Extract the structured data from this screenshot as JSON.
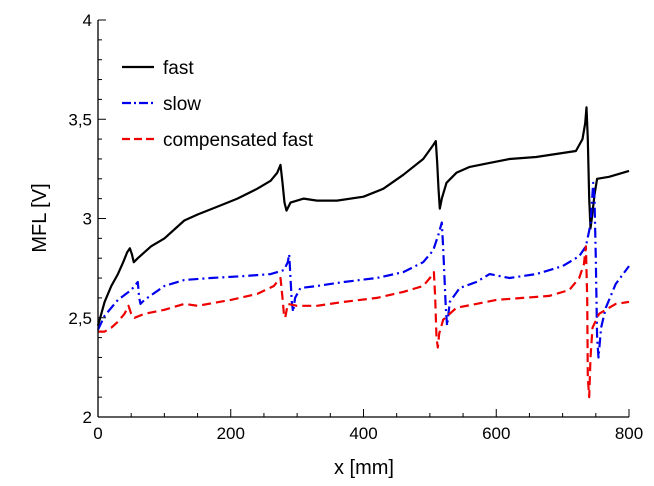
{
  "chart_data": {
    "type": "line",
    "title": "",
    "xlabel": "x [mm]",
    "ylabel": "MFL [V]",
    "xlim": [
      0,
      800
    ],
    "ylim": [
      2,
      4
    ],
    "x_ticks": [
      0,
      200,
      400,
      600,
      800
    ],
    "y_ticks": [
      2,
      2.5,
      3,
      3.5,
      4
    ],
    "y_tick_labels": [
      "2",
      "2,5",
      "3",
      "3,5",
      "4"
    ],
    "x_minor_step": 50,
    "y_minor_step": 0.1,
    "grid": false,
    "legend_position": "top-left",
    "series": [
      {
        "name": "fast",
        "color": "#000000",
        "dash": "solid",
        "points": [
          [
            0,
            2.46
          ],
          [
            10,
            2.58
          ],
          [
            20,
            2.66
          ],
          [
            30,
            2.72
          ],
          [
            38,
            2.78
          ],
          [
            44,
            2.83
          ],
          [
            48,
            2.85
          ],
          [
            51,
            2.82
          ],
          [
            54,
            2.78
          ],
          [
            60,
            2.8
          ],
          [
            80,
            2.86
          ],
          [
            100,
            2.9
          ],
          [
            130,
            2.99
          ],
          [
            150,
            3.02
          ],
          [
            180,
            3.06
          ],
          [
            210,
            3.1
          ],
          [
            240,
            3.15
          ],
          [
            260,
            3.19
          ],
          [
            270,
            3.23
          ],
          [
            275,
            3.27
          ],
          [
            278,
            3.18
          ],
          [
            281,
            3.08
          ],
          [
            284,
            3.04
          ],
          [
            290,
            3.08
          ],
          [
            310,
            3.1
          ],
          [
            330,
            3.09
          ],
          [
            360,
            3.09
          ],
          [
            400,
            3.11
          ],
          [
            430,
            3.15
          ],
          [
            460,
            3.22
          ],
          [
            490,
            3.3
          ],
          [
            505,
            3.37
          ],
          [
            509,
            3.39
          ],
          [
            511,
            3.28
          ],
          [
            513,
            3.15
          ],
          [
            515,
            3.05
          ],
          [
            518,
            3.1
          ],
          [
            525,
            3.18
          ],
          [
            540,
            3.23
          ],
          [
            560,
            3.26
          ],
          [
            590,
            3.28
          ],
          [
            620,
            3.3
          ],
          [
            660,
            3.31
          ],
          [
            700,
            3.33
          ],
          [
            720,
            3.34
          ],
          [
            730,
            3.4
          ],
          [
            734,
            3.48
          ],
          [
            736,
            3.56
          ],
          [
            738,
            3.4
          ],
          [
            740,
            3.1
          ],
          [
            742,
            2.95
          ],
          [
            744,
            3.0
          ],
          [
            748,
            3.12
          ],
          [
            752,
            3.2
          ],
          [
            770,
            3.21
          ],
          [
            800,
            3.24
          ]
        ]
      },
      {
        "name": "slow",
        "color": "#0000ee",
        "dash": "dashdot",
        "points": [
          [
            0,
            2.44
          ],
          [
            10,
            2.51
          ],
          [
            30,
            2.59
          ],
          [
            50,
            2.64
          ],
          [
            60,
            2.68
          ],
          [
            62,
            2.6
          ],
          [
            64,
            2.57
          ],
          [
            70,
            2.59
          ],
          [
            100,
            2.66
          ],
          [
            130,
            2.69
          ],
          [
            170,
            2.7
          ],
          [
            220,
            2.71
          ],
          [
            260,
            2.72
          ],
          [
            280,
            2.74
          ],
          [
            286,
            2.78
          ],
          [
            288,
            2.82
          ],
          [
            290,
            2.7
          ],
          [
            292,
            2.58
          ],
          [
            294,
            2.53
          ],
          [
            297,
            2.6
          ],
          [
            305,
            2.65
          ],
          [
            330,
            2.66
          ],
          [
            370,
            2.68
          ],
          [
            420,
            2.7
          ],
          [
            460,
            2.73
          ],
          [
            490,
            2.78
          ],
          [
            505,
            2.84
          ],
          [
            513,
            2.92
          ],
          [
            518,
            2.98
          ],
          [
            520,
            2.85
          ],
          [
            522,
            2.7
          ],
          [
            524,
            2.55
          ],
          [
            526,
            2.46
          ],
          [
            530,
            2.58
          ],
          [
            545,
            2.65
          ],
          [
            570,
            2.68
          ],
          [
            590,
            2.72
          ],
          [
            620,
            2.7
          ],
          [
            660,
            2.72
          ],
          [
            700,
            2.76
          ],
          [
            725,
            2.81
          ],
          [
            735,
            2.86
          ],
          [
            742,
            2.97
          ],
          [
            746,
            3.18
          ],
          [
            748,
            3.1
          ],
          [
            750,
            2.8
          ],
          [
            752,
            2.4
          ],
          [
            754,
            2.3
          ],
          [
            758,
            2.45
          ],
          [
            765,
            2.55
          ],
          [
            780,
            2.67
          ],
          [
            800,
            2.76
          ]
        ]
      },
      {
        "name": "compensated fast",
        "color": "#ee0000",
        "dash": "dashed",
        "points": [
          [
            0,
            2.43
          ],
          [
            10,
            2.43
          ],
          [
            20,
            2.45
          ],
          [
            30,
            2.48
          ],
          [
            40,
            2.52
          ],
          [
            46,
            2.56
          ],
          [
            50,
            2.52
          ],
          [
            55,
            2.5
          ],
          [
            70,
            2.52
          ],
          [
            100,
            2.54
          ],
          [
            130,
            2.57
          ],
          [
            150,
            2.56
          ],
          [
            200,
            2.59
          ],
          [
            240,
            2.62
          ],
          [
            265,
            2.66
          ],
          [
            272,
            2.69
          ],
          [
            275,
            2.7
          ],
          [
            278,
            2.6
          ],
          [
            280,
            2.52
          ],
          [
            282,
            2.5
          ],
          [
            286,
            2.57
          ],
          [
            300,
            2.56
          ],
          [
            330,
            2.56
          ],
          [
            370,
            2.58
          ],
          [
            420,
            2.6
          ],
          [
            460,
            2.63
          ],
          [
            490,
            2.66
          ],
          [
            500,
            2.7
          ],
          [
            506,
            2.73
          ],
          [
            508,
            2.6
          ],
          [
            510,
            2.4
          ],
          [
            512,
            2.35
          ],
          [
            514,
            2.42
          ],
          [
            520,
            2.49
          ],
          [
            540,
            2.55
          ],
          [
            570,
            2.57
          ],
          [
            600,
            2.59
          ],
          [
            640,
            2.6
          ],
          [
            680,
            2.61
          ],
          [
            710,
            2.64
          ],
          [
            725,
            2.7
          ],
          [
            732,
            2.77
          ],
          [
            735,
            2.86
          ],
          [
            737,
            2.6
          ],
          [
            738,
            2.2
          ],
          [
            740,
            2.1
          ],
          [
            742,
            2.3
          ],
          [
            745,
            2.45
          ],
          [
            755,
            2.52
          ],
          [
            780,
            2.57
          ],
          [
            800,
            2.58
          ]
        ]
      }
    ]
  }
}
